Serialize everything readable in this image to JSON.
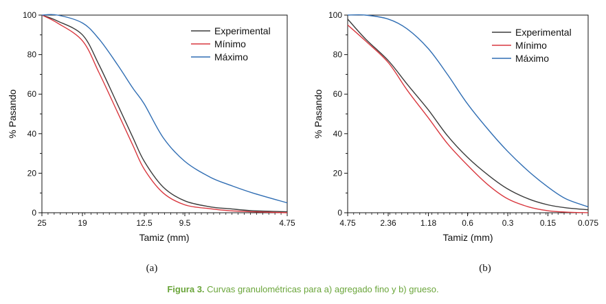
{
  "chart_data": [
    {
      "type": "line",
      "panel_label": "(a)",
      "xlabel": "Tamiz (mm)",
      "ylabel": "% Pasando",
      "ylim": [
        0,
        100
      ],
      "yticks": [
        "0",
        "20",
        "40",
        "60",
        "80",
        "100"
      ],
      "xticks": [
        "25",
        "19",
        "12.5",
        "9.5",
        "4.75"
      ],
      "legend_position": "top-right",
      "series": [
        {
          "name": "Experimental",
          "color": "#3a3a3a",
          "x": [
            25,
            22.5,
            19,
            17,
            15,
            13.5,
            12.5,
            11,
            9.5,
            8,
            7,
            6,
            4.75
          ],
          "y": [
            100,
            97,
            90,
            75,
            55,
            38,
            26,
            13,
            6,
            3,
            2,
            1,
            0.5
          ]
        },
        {
          "name": "Mínimo",
          "color": "#d9373e",
          "x": [
            25,
            22.5,
            19,
            17,
            15,
            13.5,
            12.5,
            11,
            9.5,
            8,
            7,
            6,
            4.75
          ],
          "y": [
            100,
            96,
            87,
            71,
            51,
            34,
            22,
            10,
            4,
            2,
            1,
            0.5,
            0
          ]
        },
        {
          "name": "Máximo",
          "color": "#2f6db3",
          "x": [
            25,
            22.5,
            19,
            17,
            15,
            13.5,
            12.5,
            11,
            9.5,
            8,
            7,
            6,
            4.75
          ],
          "y": [
            100,
            100,
            96,
            88,
            75,
            63,
            55,
            38,
            26,
            18,
            14,
            10,
            5
          ]
        }
      ]
    },
    {
      "type": "line",
      "panel_label": "(b)",
      "xlabel": "Tamiz (mm)",
      "ylabel": "% Pasando",
      "ylim": [
        0,
        100
      ],
      "yticks": [
        "0",
        "20",
        "40",
        "60",
        "80",
        "100"
      ],
      "xticks": [
        "4.75",
        "2.36",
        "1.18",
        "0.6",
        "0.3",
        "0.15",
        "0.075"
      ],
      "legend_position": "top-right",
      "series": [
        {
          "name": "Experimental",
          "color": "#3a3a3a",
          "x": [
            4.75,
            3.5,
            2.36,
            1.7,
            1.18,
            0.85,
            0.6,
            0.42,
            0.3,
            0.21,
            0.15,
            0.11,
            0.075
          ],
          "y": [
            98,
            88,
            77,
            65,
            52,
            39,
            28,
            19,
            12,
            7,
            4,
            2.5,
            1.5
          ]
        },
        {
          "name": "Mínimo",
          "color": "#d9373e",
          "x": [
            4.75,
            3.5,
            2.36,
            1.7,
            1.18,
            0.85,
            0.6,
            0.42,
            0.3,
            0.21,
            0.15,
            0.11,
            0.075
          ],
          "y": [
            95,
            87,
            76,
            62,
            48,
            35,
            24,
            14,
            7,
            3,
            1,
            0.3,
            0
          ]
        },
        {
          "name": "Máximo",
          "color": "#2f6db3",
          "x": [
            4.75,
            3.5,
            2.36,
            1.7,
            1.18,
            0.85,
            0.6,
            0.42,
            0.3,
            0.21,
            0.15,
            0.11,
            0.075
          ],
          "y": [
            100,
            100,
            98,
            93,
            83,
            70,
            55,
            42,
            31,
            21,
            13,
            7,
            3
          ]
        }
      ]
    }
  ],
  "caption": {
    "label": "Figura 3.",
    "text": " Curvas granulométricas para a) agregado fino y b) grueso."
  }
}
